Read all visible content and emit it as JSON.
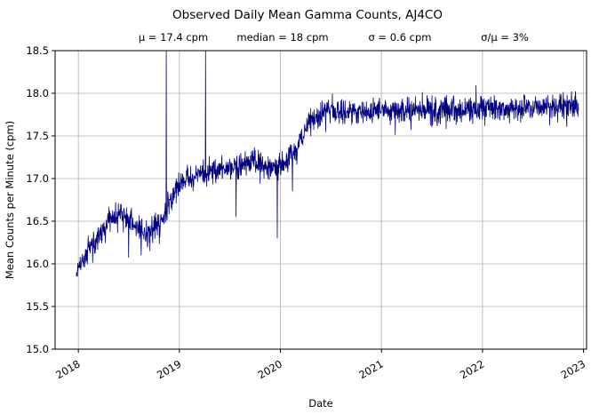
{
  "figure": {
    "title": "Observed Daily Mean Gamma Counts, AJ4CO",
    "stats": [
      "μ = 17.4 cpm",
      "median = 18 cpm",
      "σ = 0.6 cpm",
      "σ/μ = 3%"
    ]
  },
  "chart_data": {
    "type": "line",
    "title": "Observed Daily Mean Gamma Counts, AJ4CO",
    "subtitle_stats": {
      "mu": "17.4 cpm",
      "median": "18 cpm",
      "sigma": "0.6 cpm",
      "sigma_over_mu": "3%"
    },
    "xlabel": "Date",
    "ylabel": "Mean Counts per Minute (cpm)",
    "xlim": [
      2017.77,
      2023.03
    ],
    "ylim": [
      15.0,
      18.5
    ],
    "x_ticks": [
      2018,
      2019,
      2020,
      2021,
      2022,
      2023
    ],
    "x_tick_labels": [
      "2018",
      "2019",
      "2020",
      "2021",
      "2022",
      "2023"
    ],
    "y_ticks": [
      15.0,
      15.5,
      16.0,
      16.5,
      17.0,
      17.5,
      18.0,
      18.5
    ],
    "y_tick_labels": [
      "15.0",
      "15.5",
      "16.0",
      "16.5",
      "17.0",
      "17.5",
      "18.0",
      "18.5"
    ],
    "grid": true,
    "grid_color": "#b0b0b0",
    "line_color": "#000080",
    "series": [
      {
        "name": "daily-mean-gamma-counts-cpm",
        "noise_sd": 0.075,
        "trend_anchors": [
          [
            2017.98,
            15.85
          ],
          [
            2018.04,
            16.05
          ],
          [
            2018.12,
            16.2
          ],
          [
            2018.22,
            16.35
          ],
          [
            2018.33,
            16.5
          ],
          [
            2018.42,
            16.6
          ],
          [
            2018.5,
            16.5
          ],
          [
            2018.58,
            16.45
          ],
          [
            2018.68,
            16.35
          ],
          [
            2018.78,
            16.45
          ],
          [
            2018.85,
            16.55
          ],
          [
            2018.92,
            16.75
          ],
          [
            2019.0,
            16.95
          ],
          [
            2019.08,
            17.0
          ],
          [
            2019.2,
            17.05
          ],
          [
            2019.35,
            17.1
          ],
          [
            2019.5,
            17.1
          ],
          [
            2019.6,
            17.15
          ],
          [
            2019.72,
            17.2
          ],
          [
            2019.85,
            17.15
          ],
          [
            2019.97,
            17.1
          ],
          [
            2020.08,
            17.2
          ],
          [
            2020.18,
            17.4
          ],
          [
            2020.28,
            17.65
          ],
          [
            2020.38,
            17.75
          ],
          [
            2020.5,
            17.8
          ],
          [
            2020.8,
            17.8
          ],
          [
            2021.2,
            17.8
          ],
          [
            2021.6,
            17.8
          ],
          [
            2022.0,
            17.8
          ],
          [
            2022.4,
            17.82
          ],
          [
            2022.7,
            17.85
          ],
          [
            2022.95,
            17.85
          ]
        ],
        "spikes": [
          {
            "x": 2018.62,
            "y": 16.1
          },
          {
            "x": 2018.71,
            "y": 16.15
          },
          {
            "x": 2018.87,
            "y": 18.5
          },
          {
            "x": 2019.26,
            "y": 18.5
          },
          {
            "x": 2019.56,
            "y": 16.55
          },
          {
            "x": 2019.97,
            "y": 16.3
          },
          {
            "x": 2020.12,
            "y": 16.85
          }
        ]
      }
    ]
  }
}
